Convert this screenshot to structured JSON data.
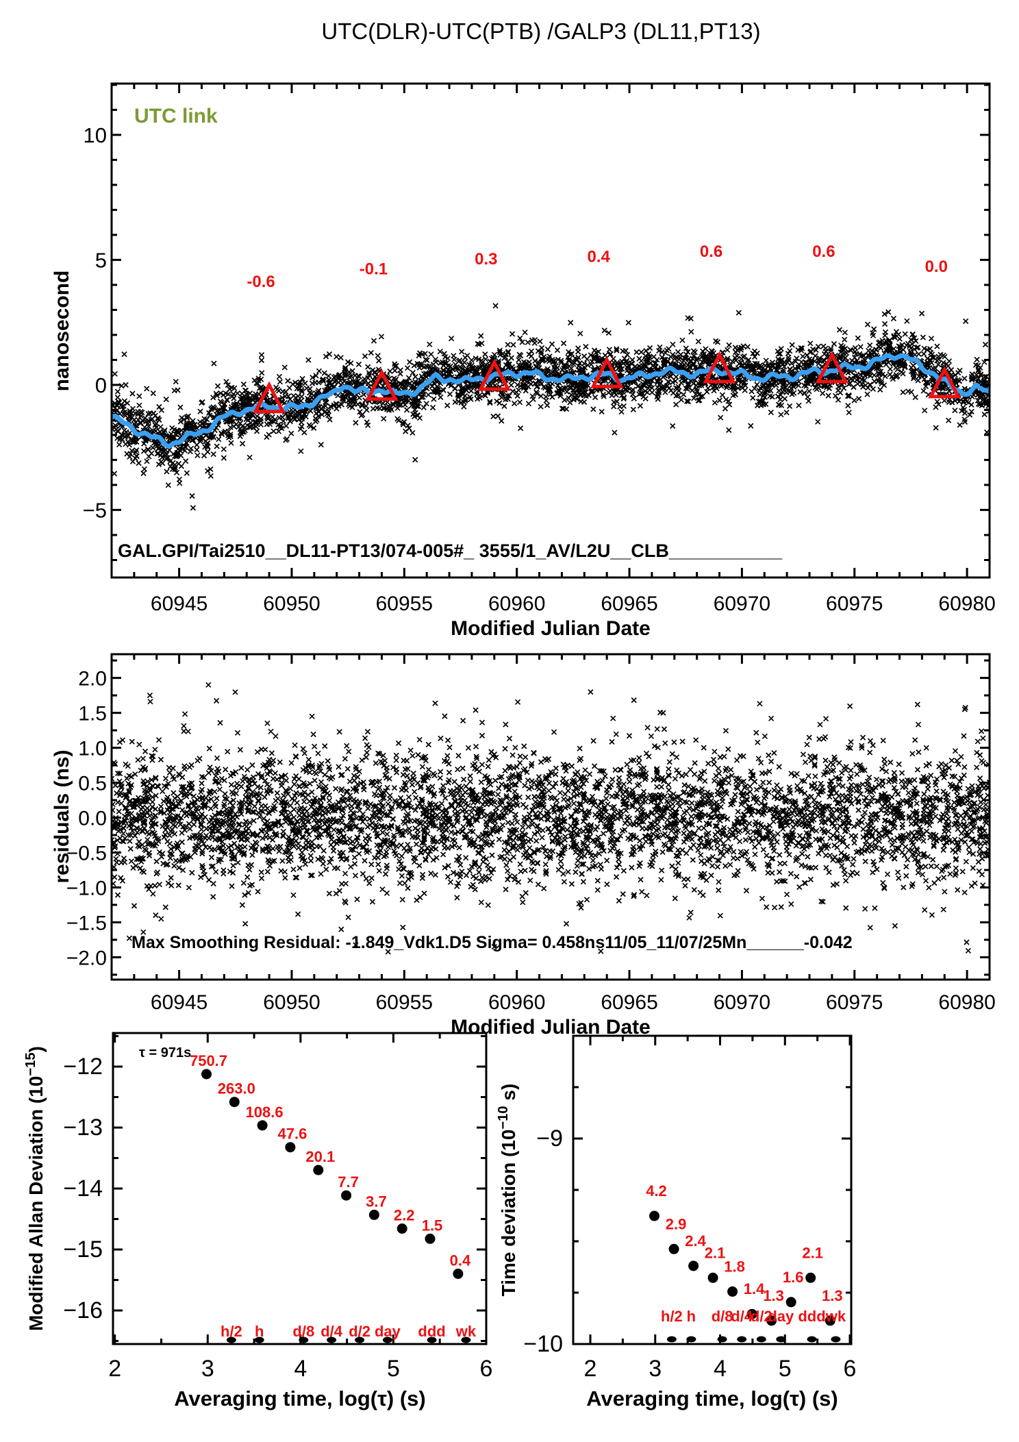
{
  "title": "UTC(DLR)-UTC(PTB)  /GALP3  (DL11,PT13)",
  "colors": {
    "red": "#ee1111",
    "blue": "#3a9ff1",
    "green": "#7b9b34",
    "black": "#000000"
  },
  "chart_data": [
    {
      "type": "scatter",
      "name": "utc-link-comparison",
      "annotation": "UTC link",
      "footer_text": "GAL.GPI/Tai2510__DL11-PT13/074-005#_  3555/1_AV/L2U__CLB___________",
      "xlabel": "Modified Julian Date",
      "ylabel": "nanosecond",
      "xlim": [
        60942,
        60981
      ],
      "ylim": [
        -7.7,
        12.05
      ],
      "grid": false,
      "xticks": {
        "values": [
          60945,
          60950,
          60955,
          60960,
          60965,
          60970,
          60975,
          60980
        ],
        "labels": [
          "60945",
          "60950",
          "60955",
          "60960",
          "60965",
          "60970",
          "60975",
          "60980"
        ],
        "minor_step": 1
      },
      "yticks": {
        "values": [
          10,
          5,
          0,
          -5
        ],
        "labels": [
          "10",
          "5",
          "0",
          "−5"
        ],
        "minor_step": 1
      },
      "smoothed_line": [
        [
          60942,
          -1.3
        ],
        [
          60943,
          -1.75
        ],
        [
          60944,
          -2.2
        ],
        [
          60944.6,
          -2.35
        ],
        [
          60945.4,
          -2.1
        ],
        [
          60946.2,
          -1.75
        ],
        [
          60947,
          -1.3
        ],
        [
          60947.6,
          -1.05
        ],
        [
          60948.4,
          -0.95
        ],
        [
          60949,
          -0.8
        ],
        [
          60949.6,
          -0.95
        ],
        [
          60950.3,
          -0.9
        ],
        [
          60951,
          -0.65
        ],
        [
          60951.8,
          -0.4
        ],
        [
          60952.3,
          0.05
        ],
        [
          60952.8,
          -0.25
        ],
        [
          60953.4,
          -0.3
        ],
        [
          60954,
          -0.15
        ],
        [
          60954.6,
          -0.4
        ],
        [
          60955.2,
          -0.3
        ],
        [
          60955.8,
          -0.1
        ],
        [
          60956.4,
          0.3
        ],
        [
          60957,
          0.25
        ],
        [
          60957.6,
          0.1
        ],
        [
          60958.2,
          0.3
        ],
        [
          60959,
          0.3
        ],
        [
          60959.8,
          0.5
        ],
        [
          60960.6,
          0.45
        ],
        [
          60961.4,
          0.3
        ],
        [
          60962.2,
          0.2
        ],
        [
          60963,
          0.35
        ],
        [
          60964,
          0.4
        ],
        [
          60964.8,
          0.25
        ],
        [
          60965.6,
          0.35
        ],
        [
          60966.4,
          0.55
        ],
        [
          60967.2,
          0.5
        ],
        [
          60968,
          0.45
        ],
        [
          60969,
          0.6
        ],
        [
          60969.8,
          0.45
        ],
        [
          60970.6,
          0.3
        ],
        [
          60971.4,
          0.3
        ],
        [
          60972.2,
          0.35
        ],
        [
          60973,
          0.5
        ],
        [
          60974,
          0.6
        ],
        [
          60974.8,
          0.7
        ],
        [
          60975.6,
          0.8
        ],
        [
          60976.3,
          1.05
        ],
        [
          60976.9,
          1.25
        ],
        [
          60977.4,
          1.05
        ],
        [
          60978,
          0.7
        ],
        [
          60978.6,
          0.45
        ],
        [
          60979.2,
          -0.05
        ],
        [
          60979.8,
          -0.3
        ],
        [
          60980.4,
          -0.1
        ],
        [
          60981,
          -0.35
        ]
      ],
      "triangle_annotations": [
        {
          "mjd": 60949,
          "value": -0.6,
          "label": "-0.6"
        },
        {
          "mjd": 60954,
          "value": -0.1,
          "label": "-0.1"
        },
        {
          "mjd": 60959,
          "value": 0.3,
          "label": "0.3"
        },
        {
          "mjd": 60964,
          "value": 0.4,
          "label": "0.4"
        },
        {
          "mjd": 60969,
          "value": 0.6,
          "label": "0.6"
        },
        {
          "mjd": 60974,
          "value": 0.6,
          "label": "0.6"
        },
        {
          "mjd": 60979,
          "value": 0.0,
          "label": "0.0"
        }
      ],
      "scatter_model": {
        "n": 3600,
        "sigma": 0.52,
        "outlier_frac": 0.08,
        "outlier_sigma": 1.05,
        "marker": "x",
        "note": "dense 30-s code measurements scattered about smoothed line"
      }
    },
    {
      "type": "scatter",
      "name": "residuals",
      "xlabel": "Modified Julian Date",
      "ylabel": "residuals (ns)",
      "stats_text": "Max Smoothing Residual: -1.849_Vdk1.D5  Sigma= 0.458ns11/05_11/07/25Mn______-0.042",
      "xlim": [
        60942,
        60981
      ],
      "ylim": [
        -2.32,
        2.34
      ],
      "xticks": {
        "values": [
          60945,
          60950,
          60955,
          60960,
          60965,
          60970,
          60975,
          60980
        ],
        "labels": [
          "60945",
          "60950",
          "60955",
          "60960",
          "60965",
          "60970",
          "60975",
          "60980"
        ],
        "minor_step": 1
      },
      "yticks": {
        "values": [
          2.0,
          1.5,
          1.0,
          0.5,
          0.0,
          -0.5,
          -1.0,
          -1.5,
          -2.0
        ],
        "labels": [
          "2.0",
          "1.5",
          "1.0",
          "0.5",
          "0.0",
          "−0.5",
          "−1.0",
          "−1.5",
          "−2.0"
        ],
        "minor_step": 0.25
      },
      "scatter_model": {
        "n": 4200,
        "sigma": 0.458,
        "outlier_frac": 0.1,
        "outlier_sigma": 0.82,
        "marker": "x",
        "note": "zero-mean smoothing residuals"
      },
      "outliers": [
        [
          60943.7,
          1.75
        ],
        [
          60946.3,
          1.9
        ],
        [
          60950.9,
          1.45
        ],
        [
          60977.8,
          1.62
        ],
        [
          60979.9,
          1.55
        ],
        [
          60944.2,
          -1.45
        ],
        [
          60952.2,
          -1.6
        ],
        [
          60959.0,
          -1.85
        ],
        [
          60976.8,
          -1.55
        ],
        [
          60966.5,
          1.5
        ],
        [
          60962.2,
          -1.52
        ],
        [
          60971.3,
          1.42
        ]
      ]
    },
    {
      "type": "scatter",
      "name": "modified-allan-deviation",
      "xlabel": "Averaging time, log(τ) (s)",
      "ylabel": "Modified Allan Deviation (10^{−15})",
      "tau_annotation": "τ = 971s",
      "xlim": [
        1.98,
        6.0
      ],
      "ylim": [
        -16.55,
        -11.45
      ],
      "xticks": {
        "values": [
          2,
          3,
          4,
          5,
          6
        ],
        "labels": [
          "2",
          "3",
          "4",
          "5",
          "6"
        ],
        "minor_step": 0.5
      },
      "yticks": {
        "values": [
          -12,
          -13,
          -14,
          -15,
          -16
        ],
        "labels": [
          "−12",
          "−13",
          "−14",
          "−15",
          "−16"
        ],
        "minor_step": 0.5
      },
      "points": [
        {
          "log_tau": 2.987,
          "value": 750.7,
          "label": "750.7"
        },
        {
          "log_tau": 3.288,
          "value": 263.0,
          "label": "263.0"
        },
        {
          "log_tau": 3.589,
          "value": 108.6,
          "label": "108.6"
        },
        {
          "log_tau": 3.89,
          "value": 47.6,
          "label": "47.6"
        },
        {
          "log_tau": 4.191,
          "value": 20.1,
          "label": "20.1"
        },
        {
          "log_tau": 4.492,
          "value": 7.7,
          "label": "7.7"
        },
        {
          "log_tau": 4.793,
          "value": 3.7,
          "label": "3.7"
        },
        {
          "log_tau": 5.094,
          "value": 2.2,
          "label": "2.2"
        },
        {
          "log_tau": 5.395,
          "value": 1.5,
          "label": "1.5"
        },
        {
          "log_tau": 5.697,
          "value": 0.4,
          "label": "0.4"
        }
      ],
      "marker_row": [
        {
          "label": "h/2",
          "log_tau": 3.255
        },
        {
          "label": "h",
          "log_tau": 3.556
        },
        {
          "label": "d/8",
          "log_tau": 4.033
        },
        {
          "label": "d/4",
          "log_tau": 4.334
        },
        {
          "label": "d/2",
          "log_tau": 4.636
        },
        {
          "label": "day",
          "log_tau": 4.937
        },
        {
          "label": "ddd",
          "log_tau": 5.414
        },
        {
          "label": "wk",
          "log_tau": 5.782
        }
      ]
    },
    {
      "type": "scatter",
      "name": "time-deviation",
      "xlabel": "Averaging time, log(τ) (s)",
      "ylabel": "Time deviation (10^{−10} s)",
      "xlim": [
        1.736,
        6.021
      ],
      "ylim": [
        -10.0,
        -8.5
      ],
      "xticks": {
        "values": [
          2,
          3,
          4,
          5,
          6
        ],
        "labels": [
          "2",
          "3",
          "4",
          "5",
          "6"
        ],
        "minor_step": 0.5
      },
      "yticks": {
        "values": [
          -9,
          -10
        ],
        "labels": [
          "−9",
          "−10"
        ],
        "minor_step": 0.25
      },
      "points": [
        {
          "log_tau": 2.987,
          "value": 4.2,
          "label": "4.2"
        },
        {
          "log_tau": 3.288,
          "value": 2.9,
          "label": "2.9"
        },
        {
          "log_tau": 3.589,
          "value": 2.4,
          "label": "2.4"
        },
        {
          "log_tau": 3.89,
          "value": 2.1,
          "label": "2.1"
        },
        {
          "log_tau": 4.191,
          "value": 1.8,
          "label": "1.8"
        },
        {
          "log_tau": 4.492,
          "value": 1.4,
          "label": "1.4"
        },
        {
          "log_tau": 4.793,
          "value": 1.3,
          "label": "1.3"
        },
        {
          "log_tau": 5.094,
          "value": 1.6,
          "label": "1.6"
        },
        {
          "log_tau": 5.395,
          "value": 2.1,
          "label": "2.1"
        },
        {
          "log_tau": 5.697,
          "value": 1.3,
          "label": "1.3"
        }
      ],
      "marker_row": [
        {
          "label": "h/2",
          "log_tau": 3.255
        },
        {
          "label": "h",
          "log_tau": 3.556
        },
        {
          "label": "d/8",
          "log_tau": 4.033
        },
        {
          "label": "d/4",
          "log_tau": 4.334
        },
        {
          "label": "d/2",
          "log_tau": 4.636
        },
        {
          "label": "day",
          "log_tau": 4.937
        },
        {
          "label": "ddd",
          "log_tau": 5.414
        },
        {
          "label": "wk",
          "log_tau": 5.782
        }
      ]
    }
  ]
}
